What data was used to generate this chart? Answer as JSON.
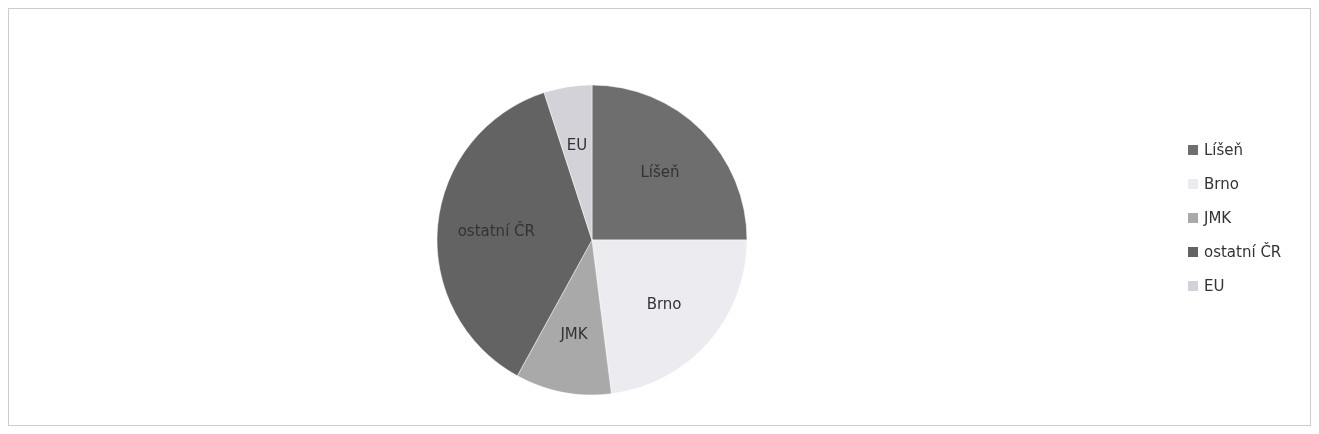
{
  "chart_data": {
    "type": "pie",
    "categories": [
      "Líšeň",
      "Brno",
      "JMK",
      "ostatní ČR",
      "EU"
    ],
    "values": [
      25,
      23,
      10,
      37,
      5
    ],
    "colors": [
      "#6e6e6e",
      "#ececf0",
      "#a9a9a9",
      "#636363",
      "#d2d2d8"
    ],
    "legend": "right"
  }
}
